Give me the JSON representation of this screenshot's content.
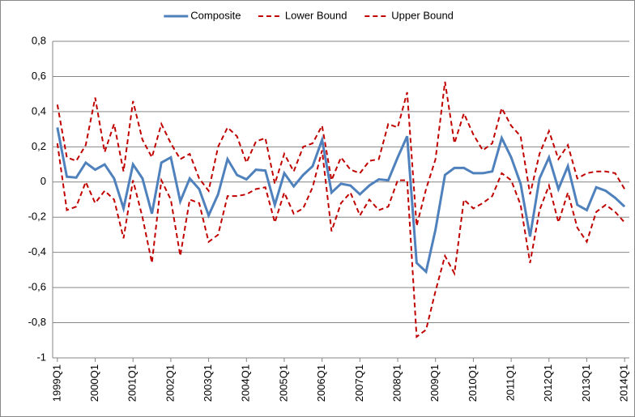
{
  "chart_data": {
    "type": "line",
    "categories": [
      "1999Q1",
      null,
      null,
      null,
      "2000Q1",
      null,
      null,
      null,
      "2001Q1",
      null,
      null,
      null,
      "2002Q1",
      null,
      null,
      null,
      "2003Q1",
      null,
      null,
      null,
      "2004Q1",
      null,
      null,
      null,
      "2005Q1",
      null,
      null,
      null,
      "2006Q1",
      null,
      null,
      null,
      "2007Q1",
      null,
      null,
      null,
      "2008Q1",
      null,
      null,
      null,
      "2009Q1",
      null,
      null,
      null,
      "2010Q1",
      null,
      null,
      null,
      "2011Q1",
      null,
      null,
      null,
      "2012Q1",
      null,
      null,
      null,
      "2013Q1",
      null,
      null,
      null,
      "2014Q1"
    ],
    "series": [
      {
        "name": "Composite",
        "color": "#4f81bd",
        "dashed": false,
        "values": [
          0.31,
          0.03,
          0.025,
          0.11,
          0.07,
          0.1,
          0.02,
          -0.15,
          0.1,
          0.02,
          -0.18,
          0.11,
          0.14,
          -0.11,
          0.02,
          -0.04,
          -0.19,
          -0.07,
          0.13,
          0.04,
          0.015,
          0.07,
          0.065,
          -0.13,
          0.05,
          -0.025,
          0.04,
          0.09,
          0.24,
          -0.06,
          -0.01,
          -0.02,
          -0.07,
          -0.02,
          0.015,
          0.01,
          0.14,
          0.26,
          -0.46,
          -0.51,
          -0.27,
          0.04,
          0.08,
          0.08,
          0.05,
          0.05,
          0.06,
          0.25,
          0.14,
          -0.01,
          -0.31,
          0.02,
          0.14,
          -0.04,
          0.09,
          -0.13,
          -0.16,
          -0.03,
          -0.05,
          -0.09,
          -0.14
        ]
      },
      {
        "name": "Lower Bound",
        "color": "#c00000",
        "dashed": true,
        "values": [
          0.22,
          -0.16,
          -0.14,
          0.0,
          -0.12,
          -0.05,
          -0.1,
          -0.32,
          0.01,
          -0.2,
          -0.46,
          0.01,
          -0.1,
          -0.42,
          -0.1,
          -0.12,
          -0.34,
          -0.3,
          -0.08,
          -0.08,
          -0.07,
          -0.04,
          -0.03,
          -0.23,
          -0.06,
          -0.18,
          -0.15,
          -0.03,
          0.18,
          -0.28,
          -0.12,
          -0.06,
          -0.19,
          -0.1,
          -0.16,
          -0.14,
          0.01,
          0.01,
          -0.88,
          -0.84,
          -0.62,
          -0.42,
          -0.52,
          -0.1,
          -0.15,
          -0.12,
          -0.08,
          0.05,
          0.01,
          -0.13,
          -0.46,
          -0.16,
          -0.02,
          -0.23,
          -0.06,
          -0.26,
          -0.34,
          -0.17,
          -0.13,
          -0.17,
          -0.23
        ]
      },
      {
        "name": "Upper Bound",
        "color": "#c00000",
        "dashed": true,
        "values": [
          0.44,
          0.14,
          0.12,
          0.21,
          0.48,
          0.17,
          0.33,
          0.06,
          0.46,
          0.24,
          0.14,
          0.33,
          0.22,
          0.13,
          0.16,
          0.02,
          -0.05,
          0.2,
          0.31,
          0.26,
          0.11,
          0.23,
          0.25,
          -0.01,
          0.16,
          0.06,
          0.2,
          0.22,
          0.32,
          0.01,
          0.14,
          0.07,
          0.05,
          0.12,
          0.13,
          0.33,
          0.31,
          0.51,
          -0.25,
          -0.04,
          0.13,
          0.57,
          0.22,
          0.39,
          0.27,
          0.18,
          0.22,
          0.42,
          0.32,
          0.26,
          -0.07,
          0.16,
          0.29,
          0.13,
          0.21,
          0.02,
          0.05,
          0.06,
          0.06,
          0.05,
          -0.04
        ]
      }
    ],
    "ylim": [
      -1,
      0.8
    ],
    "yticks": [
      -1,
      {
        "value": -0.8,
        "label": "-0,8"
      },
      {
        "value": -0.6,
        "label": "-0,6"
      },
      {
        "value": -0.4,
        "label": "-0,4"
      },
      {
        "value": -0.2,
        "label": "-0,2"
      },
      0,
      {
        "value": 0.2,
        "label": "0,2"
      },
      {
        "value": 0.4,
        "label": "0,4"
      },
      {
        "value": 0.6,
        "label": "0,6"
      },
      {
        "value": 0.8,
        "label": "0,8"
      }
    ],
    "grid": true,
    "legend": "top"
  }
}
